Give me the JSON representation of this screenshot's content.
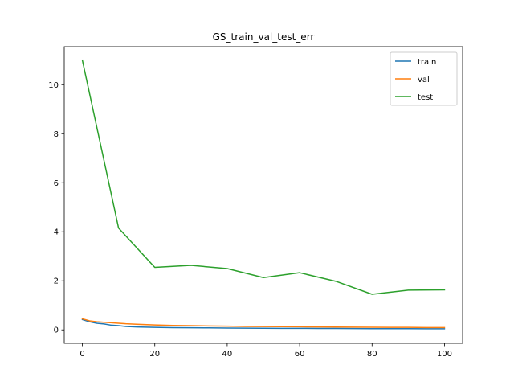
{
  "chart_data": {
    "type": "line",
    "title": "GS_train_val_test_err",
    "xlabel": "",
    "ylabel": "",
    "xlim": [
      -5,
      105
    ],
    "ylim": [
      -0.55,
      11.55
    ],
    "xticks": [
      0,
      20,
      40,
      60,
      80,
      100
    ],
    "yticks": [
      0,
      2,
      4,
      6,
      8,
      10
    ],
    "grid": false,
    "legend_position": "top-right",
    "series": [
      {
        "name": "train",
        "color": "#1f77b4",
        "x": [
          0,
          2,
          4,
          6,
          8,
          10,
          12,
          15,
          20,
          25,
          30,
          35,
          40,
          45,
          50,
          55,
          60,
          65,
          70,
          75,
          80,
          85,
          90,
          95,
          100
        ],
        "y": [
          0.42,
          0.33,
          0.27,
          0.24,
          0.19,
          0.17,
          0.14,
          0.12,
          0.1,
          0.09,
          0.085,
          0.08,
          0.075,
          0.07,
          0.065,
          0.062,
          0.06,
          0.058,
          0.055,
          0.053,
          0.05,
          0.048,
          0.047,
          0.046,
          0.045
        ]
      },
      {
        "name": "val",
        "color": "#ff7f0e",
        "x": [
          0,
          2,
          4,
          6,
          8,
          10,
          12,
          15,
          20,
          25,
          30,
          35,
          40,
          45,
          50,
          55,
          60,
          65,
          70,
          75,
          80,
          85,
          90,
          95,
          100
        ],
        "y": [
          0.45,
          0.37,
          0.33,
          0.31,
          0.29,
          0.27,
          0.25,
          0.23,
          0.2,
          0.18,
          0.17,
          0.16,
          0.15,
          0.14,
          0.135,
          0.13,
          0.125,
          0.12,
          0.115,
          0.11,
          0.105,
          0.1,
          0.1,
          0.095,
          0.095
        ]
      },
      {
        "name": "test",
        "color": "#2ca02c",
        "x": [
          0,
          10,
          20,
          30,
          40,
          50,
          60,
          70,
          80,
          90,
          100
        ],
        "y": [
          11.0,
          4.15,
          2.55,
          2.63,
          2.5,
          2.13,
          2.33,
          1.98,
          1.45,
          1.62,
          1.63
        ]
      }
    ]
  }
}
